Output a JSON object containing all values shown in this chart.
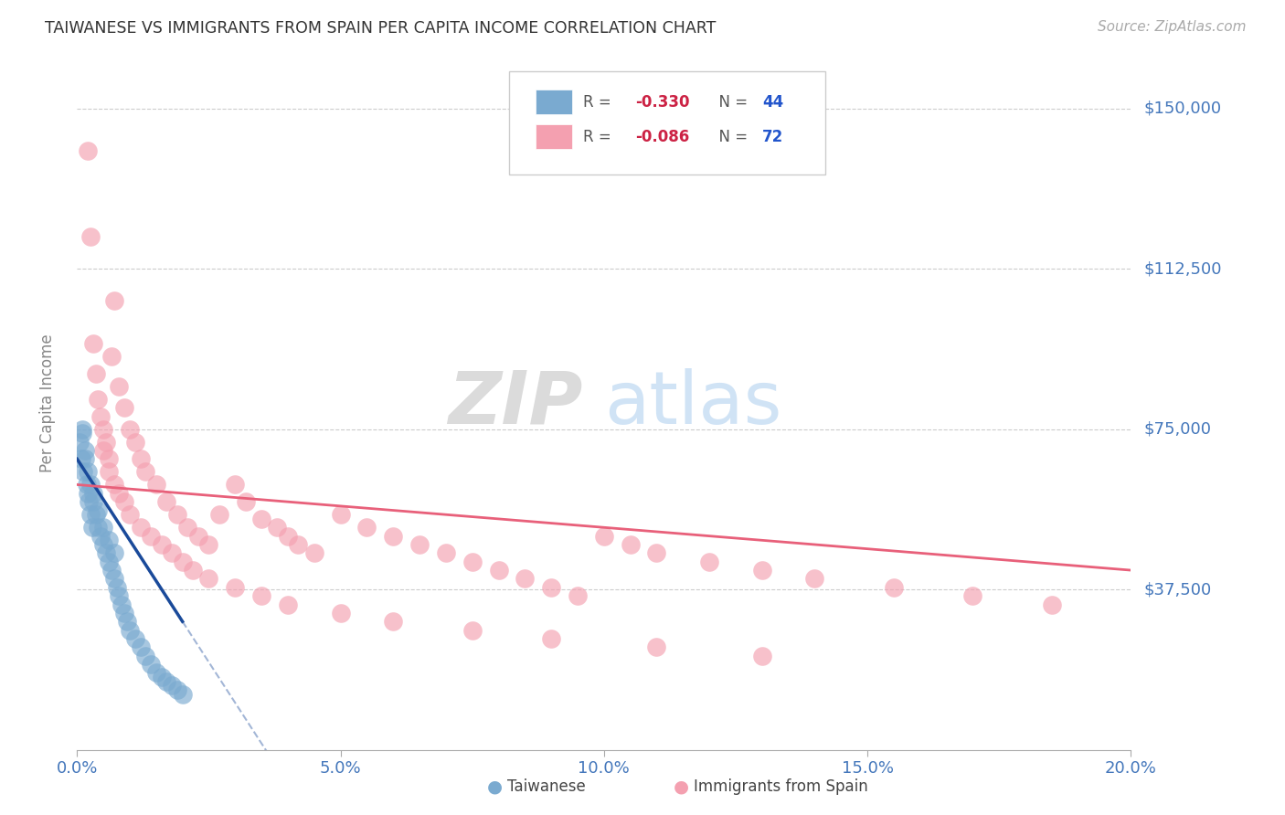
{
  "title": "TAIWANESE VS IMMIGRANTS FROM SPAIN PER CAPITA INCOME CORRELATION CHART",
  "source": "Source: ZipAtlas.com",
  "xlabel_ticks": [
    "0.0%",
    "5.0%",
    "10.0%",
    "15.0%",
    "20.0%"
  ],
  "xlabel_vals": [
    0.0,
    5.0,
    10.0,
    15.0,
    20.0
  ],
  "ylabel": "Per Capita Income",
  "yticks": [
    0,
    37500,
    75000,
    112500,
    150000
  ],
  "ytick_labels": [
    "",
    "$37,500",
    "$75,000",
    "$112,500",
    "$150,000"
  ],
  "xmin": 0.0,
  "xmax": 20.0,
  "ymin": 0,
  "ymax": 162000,
  "legend1_r": "-0.330",
  "legend1_n": "44",
  "legend2_r": "-0.086",
  "legend2_n": "72",
  "taiwan_color": "#7AAAD0",
  "spain_color": "#F4A0B0",
  "taiwan_line_color": "#1A4A9A",
  "spain_line_color": "#E8607A",
  "watermark_zip": "ZIP",
  "watermark_atlas": "atlas",
  "background_color": "#FFFFFF",
  "taiwan_x": [
    0.05,
    0.08,
    0.1,
    0.12,
    0.15,
    0.18,
    0.2,
    0.22,
    0.25,
    0.28,
    0.1,
    0.15,
    0.2,
    0.25,
    0.3,
    0.35,
    0.4,
    0.45,
    0.5,
    0.55,
    0.6,
    0.65,
    0.7,
    0.75,
    0.8,
    0.85,
    0.9,
    0.95,
    1.0,
    1.1,
    1.2,
    1.3,
    1.4,
    1.5,
    1.6,
    1.7,
    1.8,
    1.9,
    2.0,
    0.3,
    0.4,
    0.5,
    0.6,
    0.7
  ],
  "taiwan_y": [
    72000,
    68000,
    74000,
    65000,
    70000,
    62000,
    60000,
    58000,
    55000,
    52000,
    75000,
    68000,
    65000,
    62000,
    58000,
    55000,
    52000,
    50000,
    48000,
    46000,
    44000,
    42000,
    40000,
    38000,
    36000,
    34000,
    32000,
    30000,
    28000,
    26000,
    24000,
    22000,
    20000,
    18000,
    17000,
    16000,
    15000,
    14000,
    13000,
    60000,
    56000,
    52000,
    49000,
    46000
  ],
  "spain_x": [
    0.2,
    0.25,
    0.3,
    0.35,
    0.4,
    0.45,
    0.5,
    0.55,
    0.6,
    0.65,
    0.7,
    0.8,
    0.9,
    1.0,
    1.1,
    1.2,
    1.3,
    1.5,
    1.7,
    1.9,
    2.1,
    2.3,
    2.5,
    2.7,
    3.0,
    3.2,
    3.5,
    3.8,
    4.0,
    4.2,
    4.5,
    5.0,
    5.5,
    6.0,
    6.5,
    7.0,
    7.5,
    8.0,
    8.5,
    9.0,
    9.5,
    10.0,
    10.5,
    11.0,
    12.0,
    13.0,
    14.0,
    15.5,
    17.0,
    18.5,
    0.5,
    0.6,
    0.7,
    0.8,
    0.9,
    1.0,
    1.2,
    1.4,
    1.6,
    1.8,
    2.0,
    2.2,
    2.5,
    3.0,
    3.5,
    4.0,
    5.0,
    6.0,
    7.5,
    9.0,
    11.0,
    13.0
  ],
  "spain_y": [
    140000,
    120000,
    95000,
    88000,
    82000,
    78000,
    75000,
    72000,
    68000,
    92000,
    105000,
    85000,
    80000,
    75000,
    72000,
    68000,
    65000,
    62000,
    58000,
    55000,
    52000,
    50000,
    48000,
    55000,
    62000,
    58000,
    54000,
    52000,
    50000,
    48000,
    46000,
    55000,
    52000,
    50000,
    48000,
    46000,
    44000,
    42000,
    40000,
    38000,
    36000,
    50000,
    48000,
    46000,
    44000,
    42000,
    40000,
    38000,
    36000,
    34000,
    70000,
    65000,
    62000,
    60000,
    58000,
    55000,
    52000,
    50000,
    48000,
    46000,
    44000,
    42000,
    40000,
    38000,
    36000,
    34000,
    32000,
    30000,
    28000,
    26000,
    24000,
    22000
  ]
}
